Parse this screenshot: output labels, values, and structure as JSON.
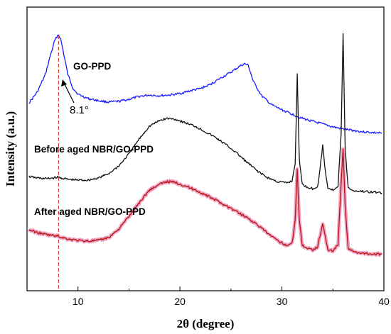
{
  "chart_data": {
    "type": "line",
    "xlabel": "2θ (degree)",
    "ylabel": "Intensity (a.u.)",
    "xlim": [
      5,
      40
    ],
    "xticks": [
      10,
      20,
      30,
      40
    ],
    "grid": false,
    "legend": "none",
    "y_axis_ticks": false,
    "series": [
      {
        "name": "GO-PPD",
        "color": "#1a1aff",
        "x": [
          5.2,
          6.0,
          6.8,
          7.3,
          7.7,
          8.0,
          8.1,
          8.3,
          8.6,
          9.0,
          9.5,
          10.0,
          11.0,
          12.0,
          13.0,
          14.0,
          15.0,
          16.0,
          17.0,
          18.0,
          19.0,
          20.0,
          21.0,
          22.0,
          23.0,
          24.0,
          25.0,
          25.8,
          26.3,
          26.7,
          27.2,
          28.0,
          29.0,
          30.0,
          31.0,
          32.0,
          33.0,
          34.0,
          35.0,
          36.0,
          37.0,
          38.0,
          39.0,
          39.8
        ],
        "y": [
          135,
          120,
          95,
          68,
          48,
          40,
          39,
          45,
          66,
          95,
          114,
          123,
          129,
          132,
          134,
          133,
          130,
          126,
          124,
          125,
          124,
          122,
          118,
          115,
          109,
          100,
          92,
          84,
          80,
          82,
          105,
          125,
          138,
          145,
          151,
          157,
          161,
          165,
          169,
          172,
          174,
          176,
          177,
          178
        ]
      },
      {
        "name": "Before aged NBR/GO-PPD",
        "color": "#111111",
        "x": [
          5.2,
          6.0,
          7.0,
          8.0,
          9.0,
          10.0,
          11.0,
          12.0,
          13.0,
          14.0,
          15.0,
          16.0,
          17.0,
          18.0,
          18.7,
          19.5,
          20.5,
          21.5,
          22.5,
          23.5,
          24.5,
          25.5,
          26.5,
          27.5,
          28.5,
          29.5,
          30.5,
          31.0,
          31.3,
          31.5,
          31.7,
          32.0,
          32.5,
          33.0,
          33.5,
          33.8,
          34.0,
          34.2,
          34.5,
          35.0,
          35.5,
          35.8,
          36.0,
          36.2,
          36.5,
          37.0,
          38.0,
          39.0,
          39.8
        ],
        "y": [
          239,
          241,
          242,
          240,
          243,
          244,
          244,
          241,
          235,
          224,
          207,
          186,
          168,
          160,
          157,
          158,
          163,
          168,
          176,
          184,
          194,
          205,
          218,
          230,
          240,
          246,
          248,
          245,
          220,
          95,
          215,
          250,
          254,
          256,
          254,
          220,
          195,
          225,
          255,
          258,
          252,
          180,
          38,
          200,
          255,
          259,
          260,
          261,
          262
        ]
      },
      {
        "name": "After aged NBR/GO-PPD",
        "color": "#b51212",
        "x": [
          5.2,
          6.0,
          7.0,
          8.0,
          9.0,
          10.0,
          11.0,
          12.0,
          13.0,
          14.0,
          15.0,
          16.0,
          17.0,
          18.0,
          18.7,
          19.5,
          20.5,
          21.5,
          22.5,
          23.5,
          24.5,
          25.5,
          26.5,
          27.5,
          28.5,
          29.5,
          30.5,
          31.0,
          31.3,
          31.5,
          31.7,
          32.0,
          32.5,
          33.0,
          33.5,
          33.8,
          34.0,
          34.2,
          34.5,
          35.0,
          35.5,
          35.8,
          36.0,
          36.2,
          36.5,
          37.0,
          38.0,
          39.0,
          39.8
        ],
        "y": [
          314,
          318,
          321,
          323,
          327,
          329,
          330,
          329,
          325,
          313,
          295,
          276,
          258,
          250,
          246,
          247,
          252,
          258,
          265,
          272,
          280,
          288,
          296,
          306,
          318,
          329,
          336,
          333,
          300,
          228,
          300,
          336,
          340,
          342,
          338,
          318,
          306,
          320,
          342,
          344,
          335,
          250,
          200,
          280,
          340,
          345,
          347,
          348,
          349
        ]
      }
    ],
    "annotations": [
      {
        "text": "8.1°",
        "x": 8.1
      }
    ],
    "reference_line": {
      "x": 8.1,
      "style": "dashed",
      "color": "#d04040"
    }
  }
}
